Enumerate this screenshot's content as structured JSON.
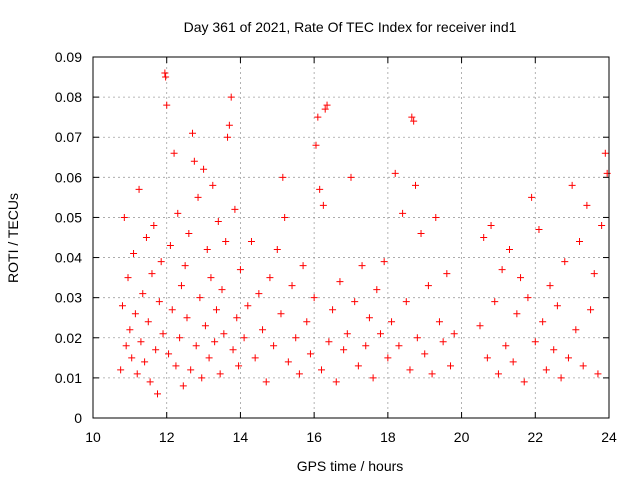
{
  "chart_data": {
    "type": "scatter",
    "title": "Day 361 of 2021, Rate Of TEC Index for receiver ind1",
    "xlabel": "GPS time / hours",
    "ylabel": "ROTI / TECUs",
    "xlim": [
      10,
      24
    ],
    "ylim": [
      0,
      0.09
    ],
    "x_ticks": [
      "10",
      "12",
      "14",
      "16",
      "18",
      "20",
      "22",
      "24"
    ],
    "y_ticks": [
      "0",
      "0.01",
      "0.02",
      "0.03",
      "0.04",
      "0.05",
      "0.06",
      "0.07",
      "0.08",
      "0.09"
    ],
    "grid": true,
    "marker": "+",
    "color": "#ff0000",
    "series": [
      {
        "points": [
          [
            10.75,
            0.012
          ],
          [
            10.8,
            0.028
          ],
          [
            10.85,
            0.05
          ],
          [
            10.9,
            0.018
          ],
          [
            10.95,
            0.035
          ],
          [
            11.0,
            0.022
          ],
          [
            11.05,
            0.015
          ],
          [
            11.1,
            0.041
          ],
          [
            11.15,
            0.026
          ],
          [
            11.2,
            0.011
          ],
          [
            11.25,
            0.057
          ],
          [
            11.3,
            0.019
          ],
          [
            11.35,
            0.031
          ],
          [
            11.4,
            0.014
          ],
          [
            11.45,
            0.045
          ],
          [
            11.5,
            0.024
          ],
          [
            11.55,
            0.009
          ],
          [
            11.6,
            0.036
          ],
          [
            11.65,
            0.048
          ],
          [
            11.7,
            0.017
          ],
          [
            11.75,
            0.006
          ],
          [
            11.8,
            0.029
          ],
          [
            11.85,
            0.039
          ],
          [
            11.9,
            0.021
          ],
          [
            11.95,
            0.086
          ],
          [
            11.97,
            0.085
          ],
          [
            12.0,
            0.078
          ],
          [
            12.05,
            0.016
          ],
          [
            12.1,
            0.043
          ],
          [
            12.15,
            0.027
          ],
          [
            12.2,
            0.066
          ],
          [
            12.25,
            0.013
          ],
          [
            12.3,
            0.051
          ],
          [
            12.35,
            0.02
          ],
          [
            12.4,
            0.033
          ],
          [
            12.45,
            0.008
          ],
          [
            12.5,
            0.038
          ],
          [
            12.55,
            0.025
          ],
          [
            12.6,
            0.046
          ],
          [
            12.65,
            0.012
          ],
          [
            12.7,
            0.071
          ],
          [
            12.75,
            0.064
          ],
          [
            12.8,
            0.018
          ],
          [
            12.85,
            0.055
          ],
          [
            12.9,
            0.03
          ],
          [
            12.95,
            0.01
          ],
          [
            13.0,
            0.062
          ],
          [
            13.05,
            0.023
          ],
          [
            13.1,
            0.042
          ],
          [
            13.15,
            0.015
          ],
          [
            13.2,
            0.035
          ],
          [
            13.25,
            0.058
          ],
          [
            13.3,
            0.019
          ],
          [
            13.35,
            0.027
          ],
          [
            13.4,
            0.049
          ],
          [
            13.45,
            0.011
          ],
          [
            13.5,
            0.032
          ],
          [
            13.55,
            0.021
          ],
          [
            13.6,
            0.044
          ],
          [
            13.65,
            0.07
          ],
          [
            13.7,
            0.073
          ],
          [
            13.75,
            0.08
          ],
          [
            13.8,
            0.017
          ],
          [
            13.85,
            0.052
          ],
          [
            13.9,
            0.025
          ],
          [
            13.95,
            0.013
          ],
          [
            14.0,
            0.037
          ],
          [
            14.1,
            0.02
          ],
          [
            14.2,
            0.028
          ],
          [
            14.3,
            0.044
          ],
          [
            14.4,
            0.015
          ],
          [
            14.5,
            0.031
          ],
          [
            14.6,
            0.022
          ],
          [
            14.7,
            0.009
          ],
          [
            14.8,
            0.035
          ],
          [
            14.9,
            0.018
          ],
          [
            15.0,
            0.042
          ],
          [
            15.1,
            0.026
          ],
          [
            15.15,
            0.06
          ],
          [
            15.2,
            0.05
          ],
          [
            15.3,
            0.014
          ],
          [
            15.4,
            0.033
          ],
          [
            15.5,
            0.02
          ],
          [
            15.6,
            0.011
          ],
          [
            15.7,
            0.038
          ],
          [
            15.8,
            0.024
          ],
          [
            15.9,
            0.016
          ],
          [
            16.0,
            0.03
          ],
          [
            16.05,
            0.068
          ],
          [
            16.1,
            0.075
          ],
          [
            16.15,
            0.057
          ],
          [
            16.2,
            0.012
          ],
          [
            16.25,
            0.053
          ],
          [
            16.3,
            0.077
          ],
          [
            16.35,
            0.078
          ],
          [
            16.4,
            0.019
          ],
          [
            16.5,
            0.027
          ],
          [
            16.6,
            0.009
          ],
          [
            16.7,
            0.034
          ],
          [
            16.8,
            0.017
          ],
          [
            16.9,
            0.021
          ],
          [
            17.0,
            0.06
          ],
          [
            17.1,
            0.029
          ],
          [
            17.2,
            0.013
          ],
          [
            17.3,
            0.038
          ],
          [
            17.4,
            0.018
          ],
          [
            17.5,
            0.025
          ],
          [
            17.6,
            0.01
          ],
          [
            17.7,
            0.032
          ],
          [
            17.8,
            0.021
          ],
          [
            17.9,
            0.039
          ],
          [
            18.0,
            0.015
          ],
          [
            18.1,
            0.024
          ],
          [
            18.2,
            0.061
          ],
          [
            18.3,
            0.018
          ],
          [
            18.4,
            0.051
          ],
          [
            18.5,
            0.029
          ],
          [
            18.6,
            0.012
          ],
          [
            18.65,
            0.075
          ],
          [
            18.7,
            0.074
          ],
          [
            18.75,
            0.058
          ],
          [
            18.8,
            0.02
          ],
          [
            18.9,
            0.046
          ],
          [
            19.0,
            0.016
          ],
          [
            19.1,
            0.033
          ],
          [
            19.2,
            0.011
          ],
          [
            19.3,
            0.05
          ],
          [
            19.4,
            0.024
          ],
          [
            19.5,
            0.019
          ],
          [
            19.6,
            0.036
          ],
          [
            19.7,
            0.013
          ],
          [
            19.8,
            0.021
          ],
          [
            20.5,
            0.023
          ],
          [
            20.6,
            0.045
          ],
          [
            20.7,
            0.015
          ],
          [
            20.8,
            0.048
          ],
          [
            20.9,
            0.029
          ],
          [
            21.0,
            0.011
          ],
          [
            21.1,
            0.037
          ],
          [
            21.2,
            0.018
          ],
          [
            21.3,
            0.042
          ],
          [
            21.4,
            0.014
          ],
          [
            21.5,
            0.026
          ],
          [
            21.6,
            0.035
          ],
          [
            21.7,
            0.009
          ],
          [
            21.8,
            0.03
          ],
          [
            21.9,
            0.055
          ],
          [
            22.0,
            0.019
          ],
          [
            22.1,
            0.047
          ],
          [
            22.2,
            0.024
          ],
          [
            22.3,
            0.012
          ],
          [
            22.4,
            0.033
          ],
          [
            22.5,
            0.017
          ],
          [
            22.6,
            0.028
          ],
          [
            22.7,
            0.01
          ],
          [
            22.8,
            0.039
          ],
          [
            22.9,
            0.015
          ],
          [
            23.0,
            0.058
          ],
          [
            23.1,
            0.022
          ],
          [
            23.2,
            0.044
          ],
          [
            23.3,
            0.013
          ],
          [
            23.4,
            0.053
          ],
          [
            23.5,
            0.027
          ],
          [
            23.6,
            0.036
          ],
          [
            23.7,
            0.011
          ],
          [
            23.8,
            0.048
          ],
          [
            23.9,
            0.066
          ],
          [
            23.95,
            0.061
          ]
        ]
      }
    ]
  }
}
